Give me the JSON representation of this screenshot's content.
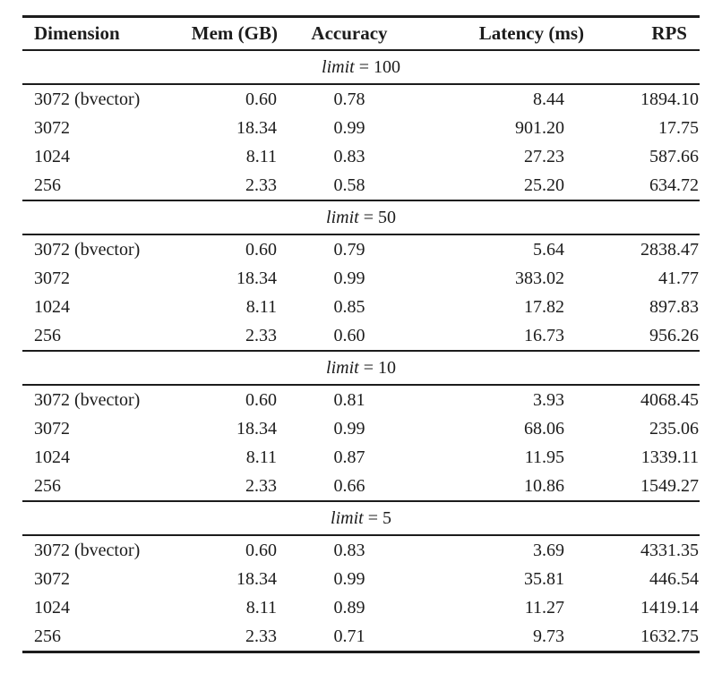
{
  "page": {
    "background": "#ffffff",
    "text_color": "#1c1c1c",
    "rule_color": "#1c1c1c"
  },
  "table": {
    "columns": [
      {
        "label": "Dimension"
      },
      {
        "label": "Mem (GB)"
      },
      {
        "label": "Accuracy"
      },
      {
        "label": "Latency (ms)"
      },
      {
        "label": "RPS"
      }
    ],
    "sections": [
      {
        "limit_word": "limit",
        "limit_value": "= 100",
        "rows": [
          [
            "3072 (bvector)",
            "0.60",
            "0.78",
            "8.44",
            "1894.10"
          ],
          [
            "3072",
            "18.34",
            "0.99",
            "901.20",
            "17.75"
          ],
          [
            "1024",
            "8.11",
            "0.83",
            "27.23",
            "587.66"
          ],
          [
            "256",
            "2.33",
            "0.58",
            "25.20",
            "634.72"
          ]
        ]
      },
      {
        "limit_word": "limit",
        "limit_value": "= 50",
        "rows": [
          [
            "3072 (bvector)",
            "0.60",
            "0.79",
            "5.64",
            "2838.47"
          ],
          [
            "3072",
            "18.34",
            "0.99",
            "383.02",
            "41.77"
          ],
          [
            "1024",
            "8.11",
            "0.85",
            "17.82",
            "897.83"
          ],
          [
            "256",
            "2.33",
            "0.60",
            "16.73",
            "956.26"
          ]
        ]
      },
      {
        "limit_word": "limit",
        "limit_value": "= 10",
        "rows": [
          [
            "3072 (bvector)",
            "0.60",
            "0.81",
            "3.93",
            "4068.45"
          ],
          [
            "3072",
            "18.34",
            "0.99",
            "68.06",
            "235.06"
          ],
          [
            "1024",
            "8.11",
            "0.87",
            "11.95",
            "1339.11"
          ],
          [
            "256",
            "2.33",
            "0.66",
            "10.86",
            "1549.27"
          ]
        ]
      },
      {
        "limit_word": "limit",
        "limit_value": "= 5",
        "rows": [
          [
            "3072 (bvector)",
            "0.60",
            "0.83",
            "3.69",
            "4331.35"
          ],
          [
            "3072",
            "18.34",
            "0.99",
            "35.81",
            "446.54"
          ],
          [
            "1024",
            "8.11",
            "0.89",
            "11.27",
            "1419.14"
          ],
          [
            "256",
            "2.33",
            "0.71",
            "9.73",
            "1632.75"
          ]
        ]
      }
    ]
  }
}
